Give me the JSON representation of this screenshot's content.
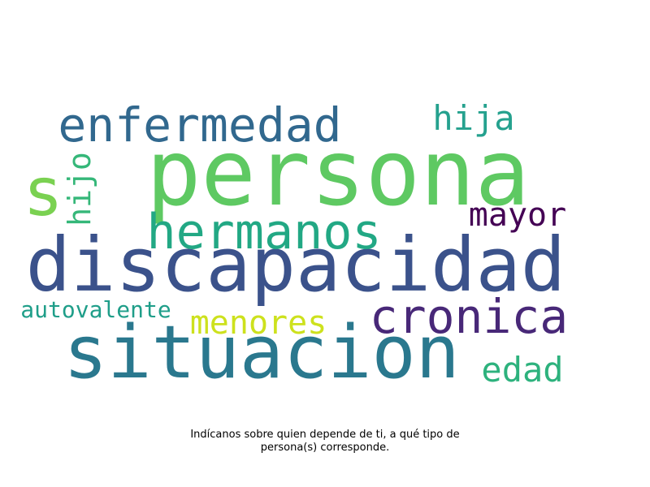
{
  "caption": {
    "line1": "Indícanos sobre quien depende de ti, a qué tipo de",
    "line2": "persona(s) corresponde."
  },
  "words": [
    {
      "text": "persona",
      "color": "#5ec962"
    },
    {
      "text": "discapacidad",
      "color": "#3b528b"
    },
    {
      "text": "situacion",
      "color": "#2a788e"
    },
    {
      "text": "enfermedad",
      "color": "#31688e"
    },
    {
      "text": "hermanos",
      "color": "#22a884"
    },
    {
      "text": "cronica",
      "color": "#482878"
    },
    {
      "text": "s",
      "color": "#7ad151"
    },
    {
      "text": "hija",
      "color": "#25a18e"
    },
    {
      "text": "mayor",
      "color": "#440154"
    },
    {
      "text": "hijo",
      "color": "#35b779"
    },
    {
      "text": "menores",
      "color": "#cde11d"
    },
    {
      "text": "edad",
      "color": "#2db27d"
    },
    {
      "text": "autovalente",
      "color": "#1f9e89"
    }
  ]
}
